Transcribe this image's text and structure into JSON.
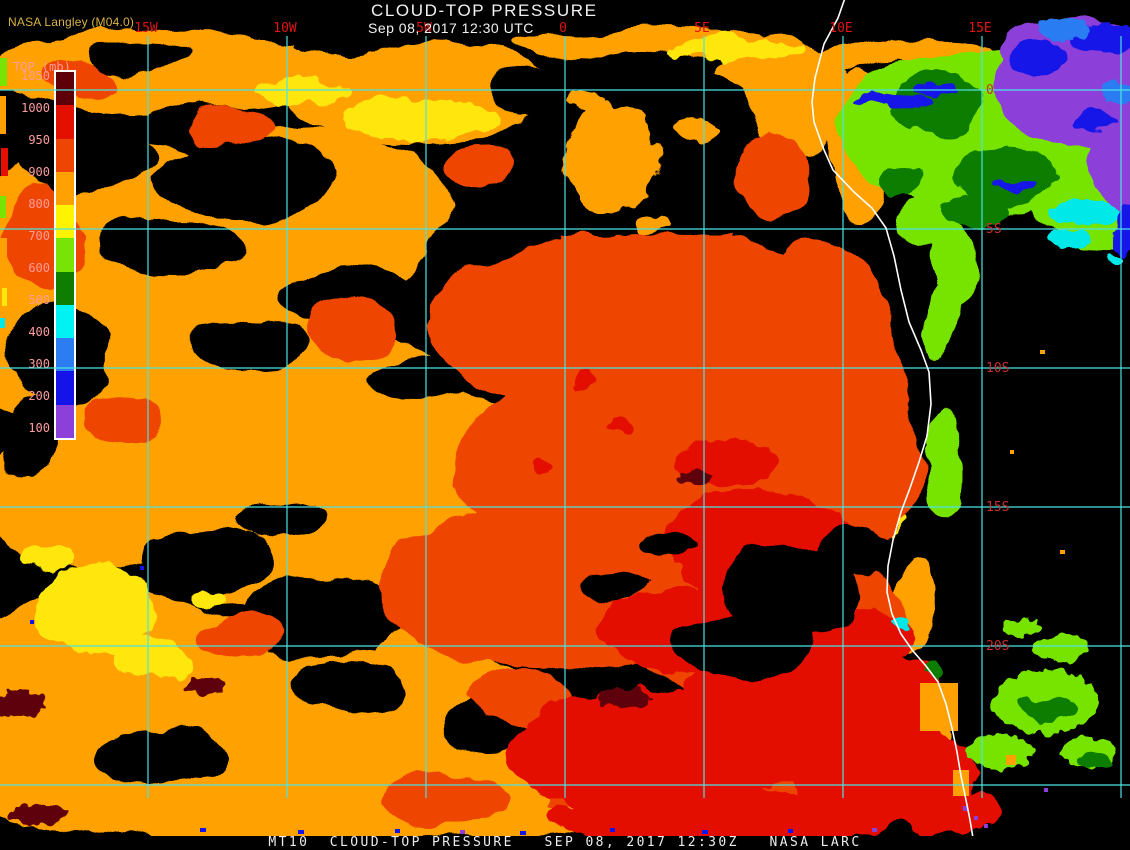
{
  "header": {
    "product_title": "CLOUD-TOP PRESSURE",
    "timestamp": "Sep 08, 2017 12:30 UTC",
    "source_label": "NASA Langley (M04.0)",
    "source_label_color": "#D9B245",
    "title_color": "#F2F2F2"
  },
  "legend": {
    "title": "TOP (mb)",
    "tick_labels": [
      "1050",
      "1000",
      "950",
      "900",
      "800",
      "700",
      "600",
      "500",
      "400",
      "300",
      "200",
      "100"
    ],
    "segment_colors": [
      "#5E0008",
      "#E31000",
      "#EE4505",
      "#FFA102",
      "#FFF400",
      "#77E405",
      "#0E7D00",
      "#00F2F2",
      "#2C7CF2",
      "#1414E8",
      "#8C3FD9"
    ],
    "label_color": "#FF9C9C"
  },
  "map": {
    "lon_labels": [
      "15W",
      "10W",
      "5W",
      "0",
      "5E",
      "10E",
      "15E"
    ],
    "lat_labels": [
      "0",
      "5S",
      "10S",
      "15S",
      "20S"
    ],
    "gridline_color": "#4BE3E3",
    "lon_label_color": "#E11414",
    "lat_label_color": "#C83030",
    "coastline_color": "#FFFFFF"
  },
  "footer": {
    "text": "MT10  CLOUD-TOP PRESSURE   SEP 08, 2017 12:30Z   NASA LARC"
  },
  "palette": {
    "background": "#000000",
    "orange": "#FFA102",
    "yellow": "#FFE70A",
    "orange_red": "#EE4505",
    "red": "#E31000",
    "dark_maroon": "#5E0008",
    "chartreuse": "#77E405",
    "dark_green": "#0E7D00",
    "cyan": "#00E8E8",
    "mid_blue": "#2C7CF2",
    "deep_blue": "#1414E8",
    "purple": "#8C3FD9"
  }
}
